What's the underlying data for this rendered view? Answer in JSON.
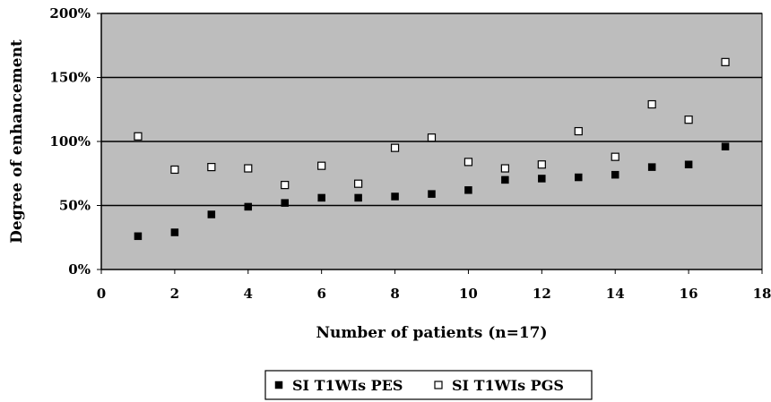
{
  "chart_data": {
    "type": "scatter",
    "xlabel": "Number of patients (n=17)",
    "ylabel": "Degree of enhancement",
    "xlim": [
      0,
      18
    ],
    "ylim": [
      0,
      200
    ],
    "x_ticks": [
      "0",
      "2",
      "4",
      "6",
      "8",
      "10",
      "12",
      "14",
      "16",
      "18"
    ],
    "y_ticks": [
      "0%",
      "50%",
      "100%",
      "150%",
      "200%"
    ],
    "grid": "horizontal",
    "legend_position": "bottom",
    "plot_background": "#bdbdbd",
    "series": [
      {
        "name": "SI T1WIs PES",
        "marker": "filled-square",
        "color": "#000000",
        "x": [
          1,
          2,
          3,
          4,
          5,
          6,
          7,
          8,
          9,
          10,
          11,
          12,
          13,
          14,
          15,
          16,
          17
        ],
        "values": [
          26,
          29,
          43,
          49,
          52,
          56,
          56,
          57,
          59,
          62,
          70,
          71,
          72,
          74,
          80,
          82,
          96
        ]
      },
      {
        "name": "SI T1WIs PGS",
        "marker": "open-square",
        "color": "#ffffff",
        "x": [
          1,
          2,
          3,
          4,
          5,
          6,
          7,
          8,
          9,
          10,
          11,
          12,
          13,
          14,
          15,
          16,
          17
        ],
        "values": [
          104,
          78,
          80,
          79,
          66,
          81,
          67,
          95,
          103,
          84,
          79,
          82,
          108,
          88,
          129,
          117,
          162
        ]
      }
    ]
  }
}
